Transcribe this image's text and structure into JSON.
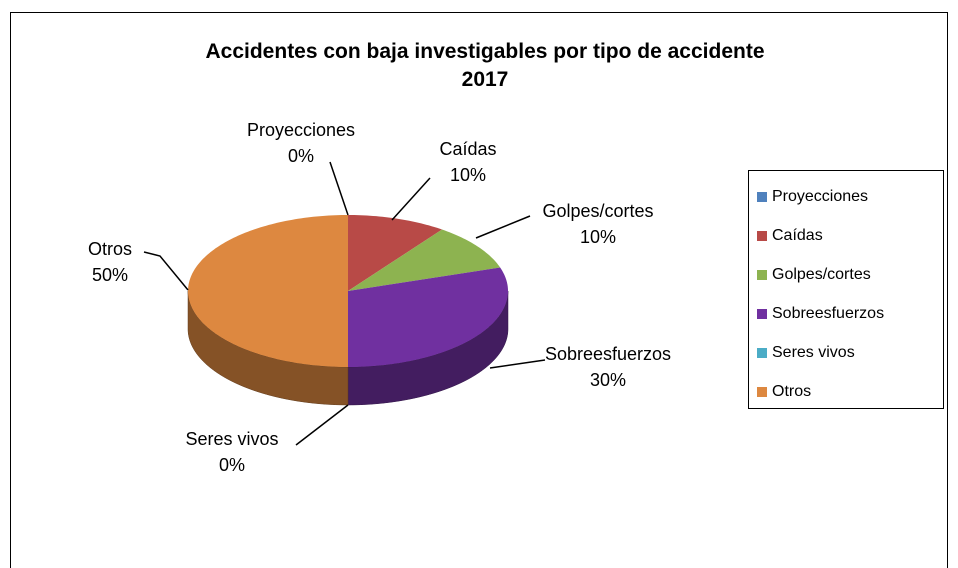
{
  "chart_data": {
    "type": "pie",
    "title": "Accidentes con baja investigables por tipo de accidente 2017",
    "categories": [
      "Proyecciones",
      "Caídas",
      "Golpes/cortes",
      "Sobreesfuerzos",
      "Seres vivos",
      "Otros"
    ],
    "values": [
      0,
      10,
      10,
      30,
      0,
      50
    ],
    "value_labels": [
      "0%",
      "10%",
      "10%",
      "30%",
      "0%",
      "50%"
    ],
    "colors": [
      "#4f81bd",
      "#b84a47",
      "#8db350",
      "#7030a0",
      "#4bacc6",
      "#dd8840"
    ],
    "legend": "right"
  }
}
